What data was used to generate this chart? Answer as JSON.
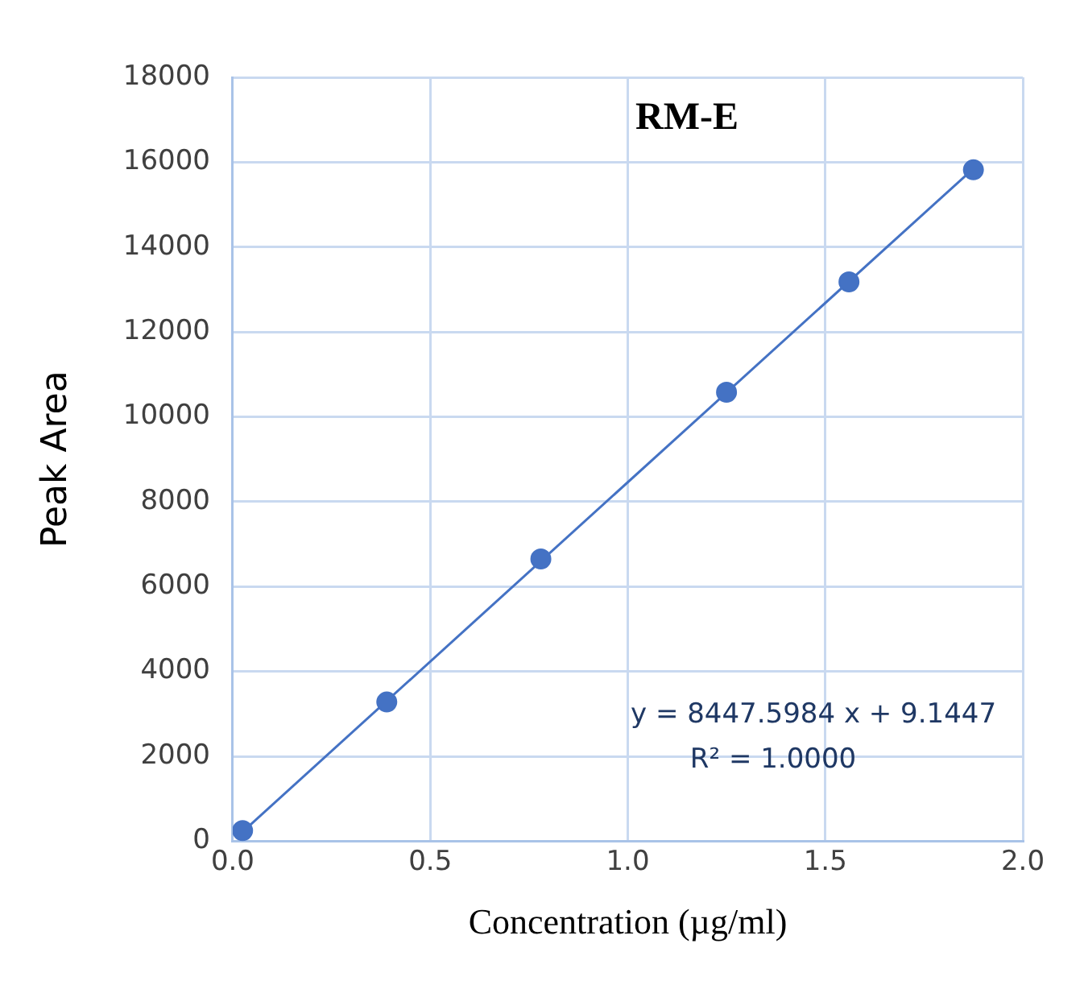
{
  "chart_data": {
    "type": "scatter",
    "title": "RM-E",
    "xlabel": "Concentration (µg/ml)",
    "ylabel": "Peak Area",
    "series": [
      {
        "color": "#4472c4",
        "x": [
          0.025,
          0.39,
          0.78,
          1.25,
          1.56,
          1.875
        ],
        "values": [
          250,
          3280,
          6650,
          10580,
          13180,
          15820
        ]
      },
      {
        "type": "line",
        "color": "#4472c4",
        "x": [
          0.025,
          1.875
        ],
        "values": [
          220,
          15850
        ],
        "marker": "none"
      }
    ],
    "xlim": [
      0,
      2
    ],
    "xticks": [
      {
        "value": 0,
        "label": "0.0"
      },
      {
        "value": 0.5,
        "label": "0.5"
      },
      {
        "value": 1,
        "label": "1.0"
      },
      {
        "value": 1.5,
        "label": "1.5"
      },
      {
        "value": 2,
        "label": "2.0"
      }
    ],
    "ylim": [
      0,
      18000
    ],
    "yticks": [
      0,
      2000,
      4000,
      6000,
      8000,
      10000,
      12000,
      14000,
      16000,
      18000
    ],
    "grid": true,
    "legend": false,
    "marker": "circle",
    "annotations": [
      "y = 8447.5984 x + 9.1447",
      "R² = 1.0000"
    ]
  }
}
